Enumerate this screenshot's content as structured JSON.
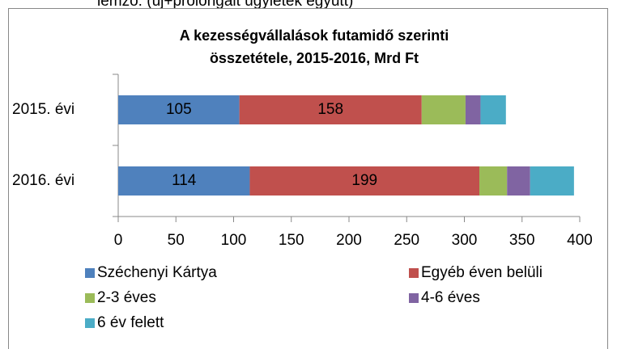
{
  "page_header": "lemző: (új+prolongált ügyletek együtt)",
  "chart_data": {
    "type": "stacked_barh",
    "title": [
      "A kezességvállalások futamidő szerinti",
      "összetétele, 2015-2016, Mrd Ft"
    ],
    "categories": [
      "2015. évi",
      "2016. évi"
    ],
    "series": [
      {
        "name": "Széchenyi Kártya",
        "color": "#4f81bd",
        "values": [
          105,
          114
        ],
        "data_labels": true
      },
      {
        "name": "Egyéb éven belüli",
        "color": "#c0504d",
        "values": [
          158,
          199
        ],
        "data_labels": true
      },
      {
        "name": "2-3 éves",
        "color": "#9bbb59",
        "values": [
          38,
          24
        ],
        "data_labels": false
      },
      {
        "name": "4-6 éves",
        "color": "#8064a2",
        "values": [
          13,
          20
        ],
        "data_labels": false
      },
      {
        "name": "6 év felett",
        "color": "#4bacc6",
        "values": [
          22,
          38
        ],
        "data_labels": false
      }
    ],
    "xlim": [
      0,
      400
    ],
    "xticks": [
      0,
      50,
      100,
      150,
      200,
      250,
      300,
      350,
      400
    ],
    "grid": false
  }
}
